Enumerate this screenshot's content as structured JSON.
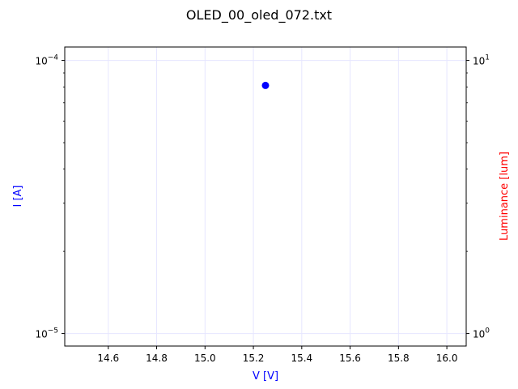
{
  "chart_data": {
    "type": "scatter",
    "title": "OLED_00_oled_072.txt",
    "xlabel": "V [V]",
    "ylabel_left": "I [A]",
    "ylabel_right": "Luminance [lum]",
    "xlim": [
      14.42,
      16.08
    ],
    "ylim_left": [
      9e-06,
      0.000112
    ],
    "ylim_right": [
      0.9,
      11.2
    ],
    "yscale_left": "log",
    "yscale_right": "log",
    "grid": true,
    "x_ticks": [
      {
        "value": 14.6,
        "label": "14.6"
      },
      {
        "value": 14.8,
        "label": "14.8"
      },
      {
        "value": 15.0,
        "label": "15.0"
      },
      {
        "value": 15.2,
        "label": "15.2"
      },
      {
        "value": 15.4,
        "label": "15.4"
      },
      {
        "value": 15.6,
        "label": "15.6"
      },
      {
        "value": 15.8,
        "label": "15.8"
      },
      {
        "value": 16.0,
        "label": "16.0"
      }
    ],
    "y_ticks_left": [
      {
        "value": 1e-05,
        "base": "10",
        "exp": "−5"
      },
      {
        "value": 0.0001,
        "base": "10",
        "exp": "−4"
      }
    ],
    "y_ticks_right": [
      {
        "value": 1,
        "base": "10",
        "exp": "0"
      },
      {
        "value": 10,
        "base": "10",
        "exp": "1"
      }
    ],
    "series": [
      {
        "axis": "left",
        "color": "#0000ff",
        "points": [
          {
            "x": 15.25,
            "y": 8.1e-05
          }
        ]
      }
    ],
    "colors": {
      "left_axis_label": "#0000ff",
      "right_axis_label": "#ff0000",
      "grid": "#e6e6ff"
    }
  }
}
